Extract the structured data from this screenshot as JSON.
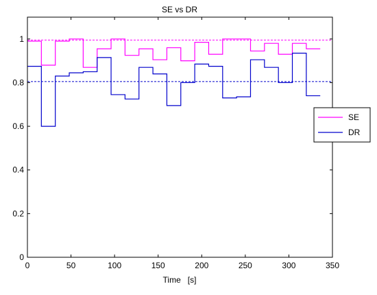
{
  "chart_data": {
    "type": "line",
    "title": "SE vs DR",
    "xlabel": "Time   [s]",
    "ylabel": "",
    "xlim": [
      0,
      350
    ],
    "ylim": [
      0,
      1.1
    ],
    "xticks": [
      0,
      50,
      100,
      150,
      200,
      250,
      300,
      350
    ],
    "yticks": [
      0,
      0.2,
      0.4,
      0.6,
      0.8,
      1
    ],
    "xtick_labels": [
      "0",
      "50",
      "100",
      "150",
      "200",
      "250",
      "300",
      "350"
    ],
    "ytick_labels": [
      "0",
      "0.2",
      "0.4",
      "0.6",
      "0.8",
      "1"
    ],
    "grid": false,
    "legend_position": "right",
    "series": [
      {
        "name": "SE",
        "color": "#ff00ff",
        "style": "step",
        "x": [
          0,
          16,
          32,
          48,
          64,
          80,
          96,
          112,
          128,
          144,
          160,
          176,
          192,
          208,
          224,
          240,
          256,
          272,
          288,
          304,
          320,
          336
        ],
        "y": [
          0.99,
          0.88,
          0.99,
          1.0,
          0.87,
          0.955,
          1.0,
          0.925,
          0.955,
          0.905,
          0.96,
          0.9,
          0.985,
          0.93,
          1.0,
          1.0,
          0.945,
          0.98,
          0.93,
          0.98,
          0.955,
          0.955
        ]
      },
      {
        "name": "DR",
        "color": "#0000cc",
        "style": "step",
        "x": [
          0,
          16,
          32,
          48,
          64,
          80,
          96,
          112,
          128,
          144,
          160,
          176,
          192,
          208,
          224,
          240,
          256,
          272,
          288,
          304,
          320,
          336
        ],
        "y": [
          0.875,
          0.6,
          0.83,
          0.845,
          0.85,
          0.915,
          0.745,
          0.725,
          0.87,
          0.84,
          0.695,
          0.8,
          0.885,
          0.875,
          0.73,
          0.735,
          0.905,
          0.87,
          0.8,
          0.935,
          0.74,
          0.74
        ]
      }
    ],
    "reference_lines": [
      {
        "series": "SE",
        "y": 0.995,
        "color": "#ff00ff",
        "dash": "dashed"
      },
      {
        "series": "DR",
        "y": 0.805,
        "color": "#0000cc",
        "dash": "dashed"
      }
    ]
  }
}
